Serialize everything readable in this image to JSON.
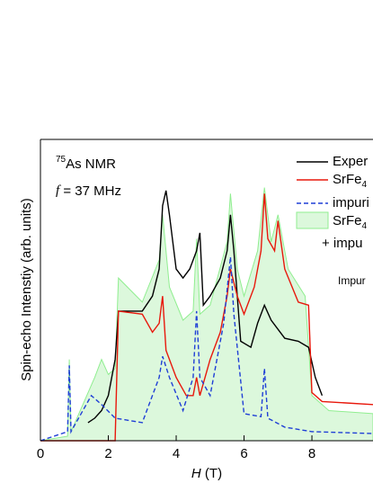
{
  "chart_data": {
    "type": "line",
    "annotations": {
      "nucleus_mass": "75",
      "nucleus": "As NMR",
      "freq_symbol": "f",
      "freq": " = 37 MHz",
      "impurity": "Impur"
    },
    "x_label": {
      "symbol": "H",
      "unit": " (T)"
    },
    "y_label": "Spin-echo Intenstiy (arb. units)",
    "xlim": [
      0,
      9.8
    ],
    "xticks": [
      0,
      2,
      4,
      6,
      8
    ],
    "ylim": [
      0,
      100
    ],
    "legend_extra": "+ impu",
    "series": [
      {
        "name": "Exper",
        "color": "#000000",
        "style": "solid",
        "x": [
          1.4,
          1.6,
          1.8,
          2.0,
          2.2,
          2.3,
          2.6,
          3.0,
          3.3,
          3.5,
          3.6,
          3.7,
          3.8,
          4.0,
          4.2,
          4.4,
          4.6,
          4.7,
          4.8,
          5.0,
          5.3,
          5.5,
          5.6,
          5.7,
          5.9,
          6.2,
          6.4,
          6.6,
          6.8,
          7.2,
          7.6,
          7.9,
          8.1,
          8.3
        ],
        "values": [
          6,
          7.5,
          10,
          15,
          27,
          43,
          43,
          43,
          48,
          57,
          78,
          83,
          75,
          57,
          54,
          57,
          63,
          69,
          45,
          48,
          54,
          63,
          75,
          63,
          33,
          31,
          39,
          45,
          40,
          34,
          33,
          31,
          21,
          15
        ]
      },
      {
        "name": "SrFe",
        "sub": "4",
        "color": "#e8180c",
        "style": "solid",
        "x": [
          0,
          2.2,
          2.3,
          3.0,
          3.3,
          3.5,
          3.6,
          3.7,
          4.0,
          4.3,
          4.5,
          4.6,
          4.7,
          5.0,
          5.3,
          5.5,
          5.6,
          5.8,
          6.0,
          6.3,
          6.5,
          6.6,
          6.7,
          6.9,
          7.0,
          7.2,
          7.6,
          7.9,
          8.0,
          8.3,
          9.8
        ],
        "values": [
          0,
          0,
          43,
          42,
          36,
          39,
          48,
          30,
          21,
          15,
          15,
          21,
          15,
          27,
          36,
          48,
          57,
          48,
          42,
          51,
          63,
          82,
          67,
          63,
          73,
          57,
          46,
          45,
          16,
          13,
          12
        ]
      },
      {
        "name": "impuri",
        "color": "#1f3fd6",
        "style": "dashed",
        "x": [
          0,
          0.8,
          0.85,
          0.9,
          1.5,
          1.8,
          2.2,
          3.0,
          3.5,
          3.6,
          3.8,
          4.2,
          4.5,
          4.6,
          4.7,
          5.0,
          5.4,
          5.6,
          5.7,
          6.0,
          6.5,
          6.6,
          6.7,
          7.2,
          8.0,
          9.8
        ],
        "values": [
          0,
          3,
          25,
          3,
          15,
          12,
          7.5,
          6,
          21,
          28,
          21,
          10,
          21,
          43,
          21,
          15,
          39,
          61,
          42,
          9,
          8,
          24,
          7.5,
          4.5,
          3,
          2.4
        ]
      },
      {
        "name": "SrFe",
        "sub": "4",
        "color": "#90ee90",
        "fill": "#dcf8dc",
        "style": "area",
        "x": [
          0,
          0.8,
          0.85,
          0.9,
          1.6,
          1.8,
          2.0,
          2.2,
          2.3,
          3.0,
          3.5,
          3.6,
          3.8,
          4.2,
          4.5,
          4.6,
          4.7,
          5.0,
          5.5,
          5.6,
          5.8,
          6.0,
          6.4,
          6.6,
          6.8,
          7.0,
          7.3,
          7.8,
          8.0,
          8.5,
          9.8
        ],
        "values": [
          0,
          1.5,
          27,
          3,
          21,
          27,
          22,
          24,
          54,
          46,
          60,
          75,
          51,
          40,
          43,
          67,
          42,
          45,
          66,
          82,
          57,
          48,
          63,
          84,
          66,
          75,
          57,
          48,
          15,
          10,
          9
        ]
      }
    ]
  }
}
